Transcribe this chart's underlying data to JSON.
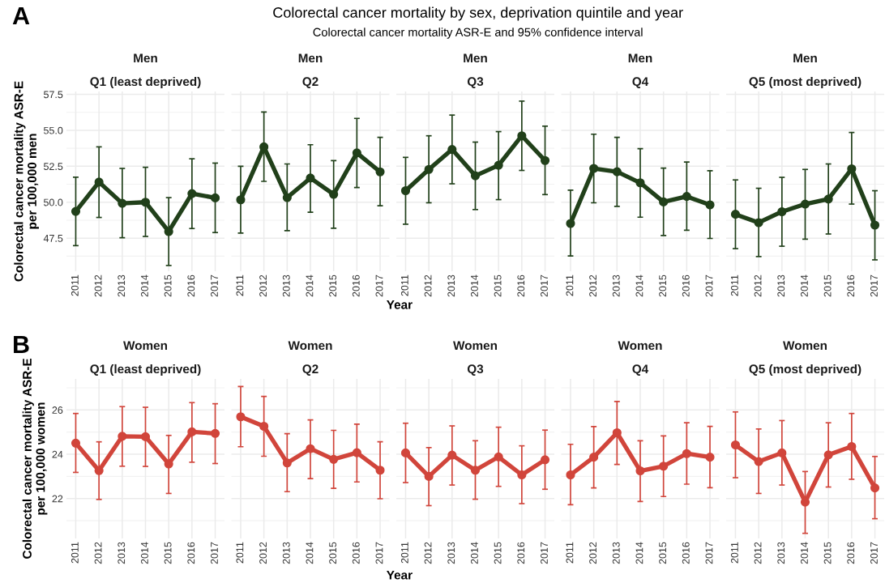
{
  "chart_data": [
    {
      "type": "line",
      "title": "Men",
      "subtitle": "Q1 (least deprived)",
      "ylabel": "Colorectal cancer mortality ASR-E\nper 100,000 men",
      "annotations": [
        "Colorectal cancer mortality by sex, deprivation quintile and year",
        "Colorectal cancer mortality ASR-E and 95% confidence interval",
        "A"
      ],
      "categories": [
        "2011",
        "2012",
        "2013",
        "2014",
        "2015",
        "2016",
        "2017"
      ],
      "ylim": [
        45.2,
        57.7
      ],
      "yticks": [
        47.5,
        {
          "value": 50,
          "label": "50.0"
        },
        52.5,
        {
          "value": 55,
          "label": "55.0"
        },
        57.5
      ],
      "grid": true,
      "marker": "circle",
      "line_style": "solid",
      "series": [
        {
          "color": "#21401a",
          "values": [
            49.36,
            51.4,
            49.92,
            50.0,
            47.96,
            50.6,
            50.3
          ],
          "errors": [
            [
              46.98,
              51.74
            ],
            [
              48.94,
              53.85
            ],
            [
              47.53,
              52.35
            ],
            [
              47.62,
              52.43
            ],
            [
              45.6,
              50.32
            ],
            [
              48.17,
              53.02
            ],
            [
              47.89,
              52.72
            ]
          ]
        }
      ]
    },
    {
      "type": "line",
      "title": "Men",
      "subtitle": "Q2",
      "categories": [
        "2011",
        "2012",
        "2013",
        "2014",
        "2015",
        "2016",
        "2017"
      ],
      "ylim": [
        45.2,
        57.7
      ],
      "yticks": [
        47.5,
        50.0,
        52.5,
        55.0,
        57.5
      ],
      "tick_labels": "x",
      "grid": true,
      "marker": "circle",
      "line_style": "solid",
      "series": [
        {
          "color": "#21401a",
          "values": [
            50.17,
            53.85,
            50.32,
            51.68,
            50.55,
            53.43,
            52.11
          ],
          "errors": [
            [
              47.85,
              52.5
            ],
            [
              51.45,
              56.27
            ],
            [
              48.02,
              52.66
            ],
            [
              49.3,
              54.0
            ],
            [
              48.19,
              52.89
            ],
            [
              51.02,
              55.83
            ],
            [
              49.75,
              54.51
            ]
          ]
        }
      ]
    },
    {
      "type": "line",
      "title": "Men",
      "subtitle": "Q3",
      "xlabel": "Year",
      "categories": [
        "2011",
        "2012",
        "2013",
        "2014",
        "2015",
        "2016",
        "2017"
      ],
      "ylim": [
        45.2,
        57.7
      ],
      "yticks": [
        47.5,
        50.0,
        52.5,
        55.0,
        57.5
      ],
      "tick_labels": "x",
      "grid": true,
      "marker": "circle",
      "line_style": "solid",
      "series": [
        {
          "color": "#21401a",
          "values": [
            50.8,
            52.28,
            53.67,
            51.84,
            52.57,
            54.62,
            52.9
          ],
          "errors": [
            [
              48.47,
              53.12
            ],
            [
              49.96,
              54.62
            ],
            [
              51.28,
              56.06
            ],
            [
              49.49,
              54.18
            ],
            [
              50.18,
              54.91
            ],
            [
              52.21,
              57.03
            ],
            [
              50.53,
              55.29
            ]
          ]
        }
      ]
    },
    {
      "type": "line",
      "title": "Men",
      "subtitle": "Q4",
      "categories": [
        "2011",
        "2012",
        "2013",
        "2014",
        "2015",
        "2016",
        "2017"
      ],
      "ylim": [
        45.2,
        57.7
      ],
      "yticks": [
        47.5,
        50.0,
        52.5,
        55.0,
        57.5
      ],
      "tick_labels": "x",
      "grid": true,
      "marker": "circle",
      "line_style": "solid",
      "series": [
        {
          "color": "#21401a",
          "values": [
            48.52,
            52.35,
            52.12,
            51.35,
            50.02,
            50.4,
            49.82
          ],
          "errors": [
            [
              46.26,
              50.84
            ],
            [
              49.96,
              54.73
            ],
            [
              49.71,
              54.51
            ],
            [
              48.96,
              53.72
            ],
            [
              47.68,
              52.37
            ],
            [
              48.05,
              52.79
            ],
            [
              47.48,
              52.19
            ]
          ]
        }
      ]
    },
    {
      "type": "line",
      "title": "Men",
      "subtitle": "Q5 (most deprived)",
      "categories": [
        "2011",
        "2012",
        "2013",
        "2014",
        "2015",
        "2016",
        "2017"
      ],
      "ylim": [
        45.2,
        57.7
      ],
      "yticks": [
        47.5,
        50.0,
        52.5,
        55.0,
        57.5
      ],
      "tick_labels": "x",
      "grid": true,
      "marker": "circle",
      "line_style": "solid",
      "series": [
        {
          "color": "#21401a",
          "values": [
            49.16,
            48.58,
            49.34,
            49.87,
            50.22,
            52.32,
            48.41
          ],
          "errors": [
            [
              46.77,
              51.55
            ],
            [
              46.22,
              50.97
            ],
            [
              46.94,
              51.73
            ],
            [
              47.43,
              52.28
            ],
            [
              47.79,
              52.66
            ],
            [
              49.87,
              54.85
            ],
            [
              45.99,
              50.8
            ]
          ]
        }
      ]
    },
    {
      "type": "line",
      "title": "Women",
      "subtitle": "Q1 (least deprived)",
      "ylabel": "Colorectal cancer mortality ASR-E\nper 100,000 women",
      "annotations": [
        "B"
      ],
      "categories": [
        "2011",
        "2012",
        "2013",
        "2014",
        "2015",
        "2016",
        "2017"
      ],
      "ylim": [
        20.2,
        27.4
      ],
      "yticks": [
        22,
        24,
        26
      ],
      "grid": true,
      "marker": "circle",
      "line_style": "solid",
      "series": [
        {
          "color": "#d1453b",
          "values": [
            24.5,
            23.26,
            24.81,
            24.79,
            23.56,
            25.01,
            24.94
          ],
          "errors": [
            [
              23.18,
              25.84
            ],
            [
              21.96,
              24.56
            ],
            [
              23.46,
              26.15
            ],
            [
              23.45,
              26.12
            ],
            [
              22.23,
              24.85
            ],
            [
              23.64,
              26.33
            ],
            [
              23.58,
              26.28
            ]
          ]
        }
      ]
    },
    {
      "type": "line",
      "title": "Women",
      "subtitle": "Q2",
      "categories": [
        "2011",
        "2012",
        "2013",
        "2014",
        "2015",
        "2016",
        "2017"
      ],
      "ylim": [
        20.2,
        27.4
      ],
      "yticks": [
        22,
        24,
        26
      ],
      "tick_labels": "x",
      "grid": true,
      "marker": "circle",
      "line_style": "solid",
      "series": [
        {
          "color": "#d1453b",
          "values": [
            25.69,
            25.26,
            23.61,
            24.25,
            23.77,
            24.07,
            23.28
          ],
          "errors": [
            [
              24.34,
              27.06
            ],
            [
              23.91,
              26.61
            ],
            [
              22.31,
              24.93
            ],
            [
              22.9,
              25.55
            ],
            [
              22.46,
              25.08
            ],
            [
              22.75,
              25.36
            ],
            [
              21.99,
              24.56
            ]
          ]
        }
      ]
    },
    {
      "type": "line",
      "title": "Women",
      "subtitle": "Q3",
      "xlabel": "Year",
      "categories": [
        "2011",
        "2012",
        "2013",
        "2014",
        "2015",
        "2016",
        "2017"
      ],
      "ylim": [
        20.2,
        27.4
      ],
      "yticks": [
        22,
        24,
        26
      ],
      "tick_labels": "x",
      "grid": true,
      "marker": "circle",
      "line_style": "solid",
      "series": [
        {
          "color": "#d1453b",
          "values": [
            24.06,
            23.0,
            23.96,
            23.28,
            23.88,
            23.07,
            23.75
          ],
          "errors": [
            [
              22.72,
              25.4
            ],
            [
              21.68,
              24.3
            ],
            [
              22.61,
              25.28
            ],
            [
              21.97,
              24.61
            ],
            [
              22.55,
              25.22
            ],
            [
              21.77,
              24.38
            ],
            [
              22.42,
              25.09
            ]
          ]
        }
      ]
    },
    {
      "type": "line",
      "title": "Women",
      "subtitle": "Q4",
      "categories": [
        "2011",
        "2012",
        "2013",
        "2014",
        "2015",
        "2016",
        "2017"
      ],
      "ylim": [
        20.2,
        27.4
      ],
      "yticks": [
        22,
        24,
        26
      ],
      "tick_labels": "x",
      "grid": true,
      "marker": "circle",
      "line_style": "solid",
      "series": [
        {
          "color": "#d1453b",
          "values": [
            23.07,
            23.87,
            24.97,
            23.25,
            23.46,
            24.03,
            23.87
          ],
          "errors": [
            [
              21.72,
              24.45
            ],
            [
              22.48,
              25.25
            ],
            [
              23.54,
              26.38
            ],
            [
              21.87,
              24.61
            ],
            [
              22.09,
              24.83
            ],
            [
              22.65,
              25.42
            ],
            [
              22.49,
              25.26
            ]
          ]
        }
      ]
    },
    {
      "type": "line",
      "title": "Women",
      "subtitle": "Q5 (most deprived)",
      "categories": [
        "2011",
        "2012",
        "2013",
        "2014",
        "2015",
        "2016",
        "2017"
      ],
      "ylim": [
        20.2,
        27.4
      ],
      "yticks": [
        22,
        24,
        26
      ],
      "tick_labels": "x",
      "grid": true,
      "marker": "circle",
      "line_style": "solid",
      "series": [
        {
          "color": "#d1453b",
          "values": [
            24.42,
            23.67,
            24.06,
            21.84,
            23.97,
            24.35,
            22.48
          ],
          "errors": [
            [
              22.94,
              25.91
            ],
            [
              22.23,
              25.14
            ],
            [
              22.61,
              25.52
            ],
            [
              20.43,
              23.22
            ],
            [
              22.52,
              25.42
            ],
            [
              22.87,
              25.84
            ],
            [
              21.09,
              23.9
            ]
          ]
        }
      ]
    }
  ]
}
